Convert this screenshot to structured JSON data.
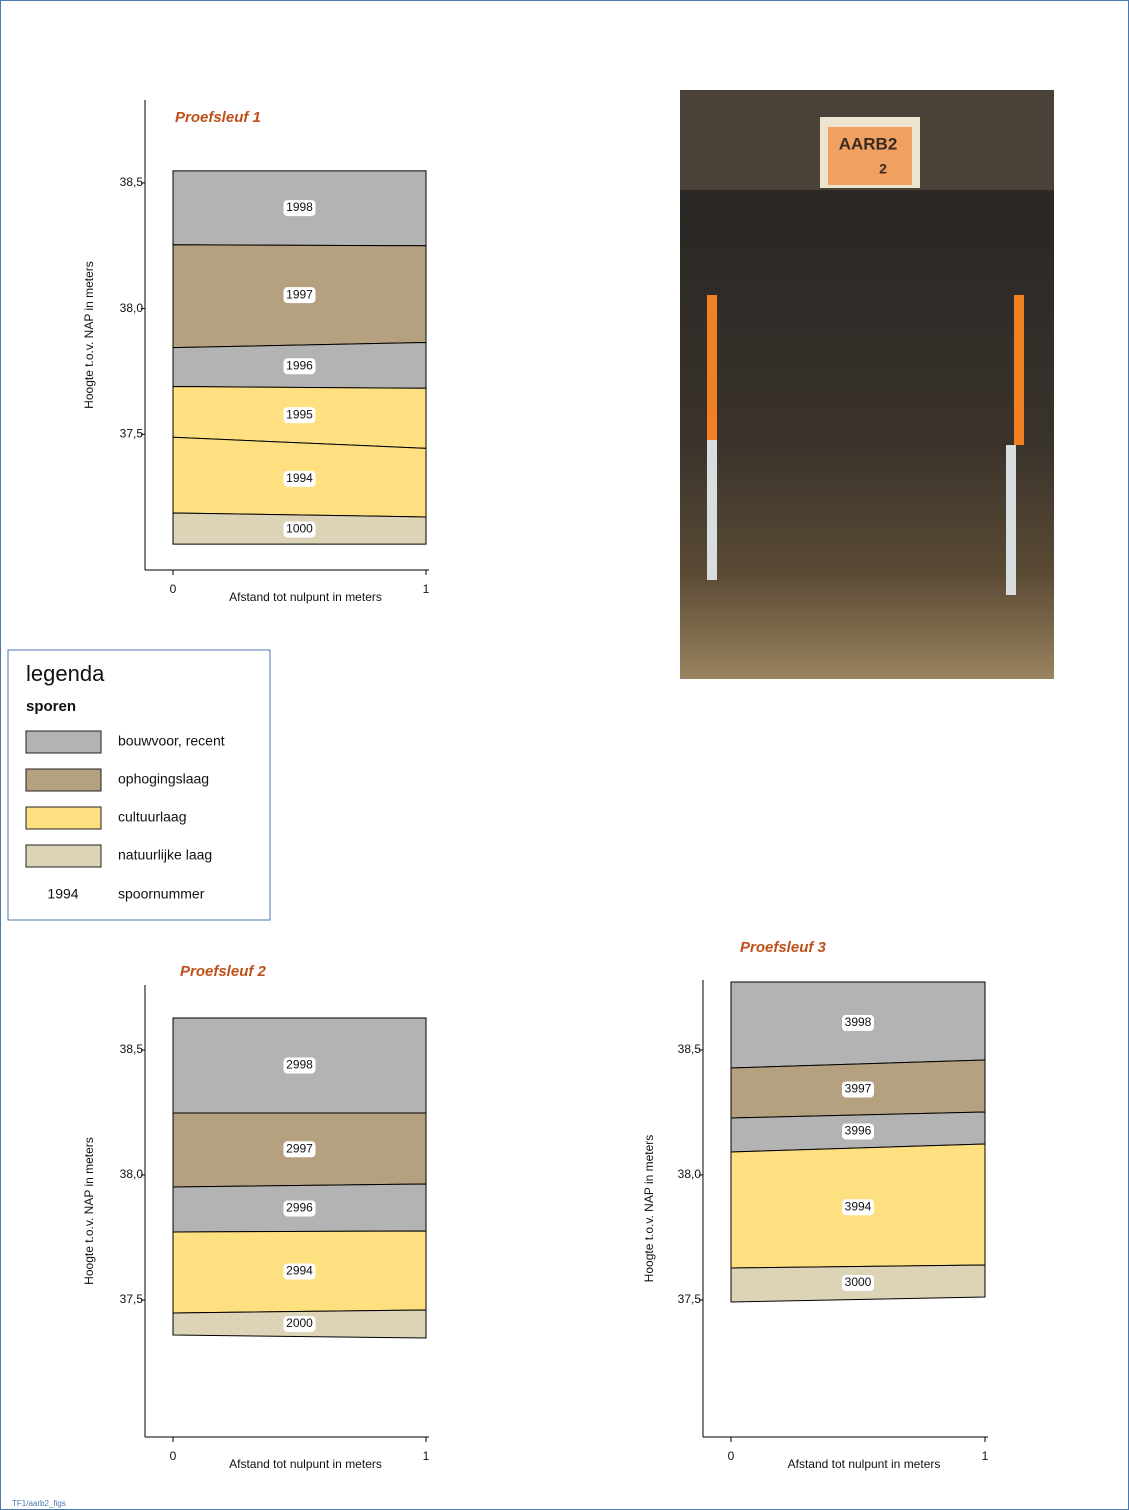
{
  "chart_data": [
    {
      "type": "profile",
      "title": "Proefsleuf 1",
      "ylabel": "Hoogte t.o.v. NAP in meters",
      "xlabel": "Afstand tot nulpunt in meters",
      "xlim": [
        0,
        1
      ],
      "xticks": [
        0,
        1
      ],
      "ylim": [
        36.96,
        38.83
      ],
      "yticks": [
        {
          "value": 37.5,
          "label": "37,5"
        },
        {
          "value": 38.0,
          "label": "38,0"
        },
        {
          "value": 38.5,
          "label": "38,5"
        }
      ],
      "layers": [
        {
          "label": "1998",
          "color": "#b3b3b3",
          "top": [
            38.548,
            38.548
          ],
          "bottom": [
            38.254,
            38.25
          ]
        },
        {
          "label": "1997",
          "color": "#b5a07f",
          "top": [
            38.254,
            38.25
          ],
          "bottom": [
            37.845,
            37.865
          ]
        },
        {
          "label": "1996",
          "color": "#b3b3b3",
          "top": [
            37.845,
            37.865
          ],
          "bottom": [
            37.69,
            37.683
          ]
        },
        {
          "label": "1995",
          "color": "#ffe080",
          "top": [
            37.69,
            37.683
          ],
          "bottom": [
            37.488,
            37.444
          ]
        },
        {
          "label": "1994",
          "color": "#ffe080",
          "top": [
            37.488,
            37.444
          ],
          "bottom": [
            37.187,
            37.171
          ]
        },
        {
          "label": "1000",
          "color": "#ddd3b6",
          "top": [
            37.187,
            37.171
          ],
          "bottom": [
            37.063,
            37.063
          ]
        }
      ]
    },
    {
      "type": "profile",
      "title": "Proefsleuf 2",
      "ylabel": "Hoogte t.o.v. NAP in meters",
      "xlabel": "Afstand tot nulpunt in meters",
      "xlim": [
        0,
        1
      ],
      "xticks": [
        0,
        1
      ],
      "ylim": [
        36.952,
        38.76
      ],
      "yticks": [
        {
          "value": 37.5,
          "label": "37,5"
        },
        {
          "value": 38.0,
          "label": "38,0"
        },
        {
          "value": 38.5,
          "label": "38,5"
        }
      ],
      "layers": [
        {
          "label": "2998",
          "color": "#b3b3b3",
          "top": [
            38.628,
            38.628
          ],
          "bottom": [
            38.248,
            38.248
          ]
        },
        {
          "label": "2997",
          "color": "#b5a07f",
          "top": [
            38.248,
            38.248
          ],
          "bottom": [
            37.952,
            37.964
          ]
        },
        {
          "label": "2996",
          "color": "#b3b3b3",
          "top": [
            37.952,
            37.964
          ],
          "bottom": [
            37.772,
            37.776
          ]
        },
        {
          "label": "2994",
          "color": "#ffe080",
          "top": [
            37.772,
            37.776
          ],
          "bottom": [
            37.448,
            37.46
          ]
        },
        {
          "label": "2000",
          "color": "#ddd3b6",
          "top": [
            37.448,
            37.46
          ],
          "bottom": [
            37.36,
            37.348
          ]
        }
      ]
    },
    {
      "type": "profile",
      "title": "Proefsleuf 3",
      "ylabel": "Hoogte t.o.v. NAP in meters",
      "xlabel": "Afstand tot nulpunt in meters",
      "xlim": [
        0,
        1
      ],
      "xticks": [
        0,
        1
      ],
      "ylim": [
        36.952,
        38.78
      ],
      "yticks": [
        {
          "value": 37.5,
          "label": "37,5"
        },
        {
          "value": 38.0,
          "label": "38,0"
        },
        {
          "value": 38.5,
          "label": "38,5"
        }
      ],
      "layers": [
        {
          "label": "3998",
          "color": "#b3b3b3",
          "top": [
            38.772,
            38.772
          ],
          "bottom": [
            38.428,
            38.46
          ]
        },
        {
          "label": "3997",
          "color": "#b5a07f",
          "top": [
            38.428,
            38.46
          ],
          "bottom": [
            38.228,
            38.252
          ]
        },
        {
          "label": "3996",
          "color": "#b3b3b3",
          "top": [
            38.228,
            38.252
          ],
          "bottom": [
            38.092,
            38.124
          ]
        },
        {
          "label": "3994",
          "color": "#ffe080",
          "top": [
            38.092,
            38.124
          ],
          "bottom": [
            37.628,
            37.64
          ]
        },
        {
          "label": "3000",
          "color": "#ddd3b6",
          "top": [
            37.628,
            37.64
          ],
          "bottom": [
            37.492,
            37.512
          ]
        }
      ]
    }
  ],
  "legend": {
    "title": "legenda",
    "subtitle": "sporen",
    "items": [
      {
        "label": "bouwvoor, recent",
        "color": "#b3b3b3"
      },
      {
        "label": "ophogingslaag",
        "color": "#b5a07f"
      },
      {
        "label": "cultuurlaag",
        "color": "#ffe080"
      },
      {
        "label": "natuurlijke laag",
        "color": "#ddd3b6"
      }
    ],
    "example": {
      "number": "1994",
      "label": "spoornummer"
    }
  },
  "photo": {
    "sign_code": "AARB2",
    "sign_number": "2"
  },
  "footer": "TF1/aarb2_figs"
}
